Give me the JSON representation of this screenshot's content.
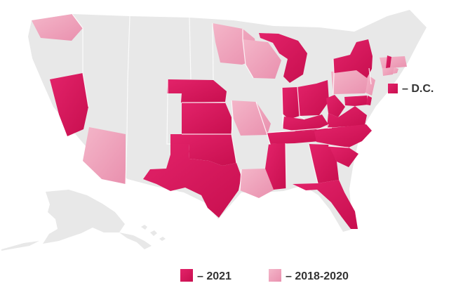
{
  "map": {
    "colors": {
      "base": "#e8e8e8",
      "y2021": "#cf1457",
      "y2018_2020": "#eea2ba",
      "text": "#333333"
    },
    "legend": {
      "dc_label": "– D.C.",
      "year2021_label": "– 2021",
      "year2018_2020_label": "– 2018-2020"
    }
  }
}
